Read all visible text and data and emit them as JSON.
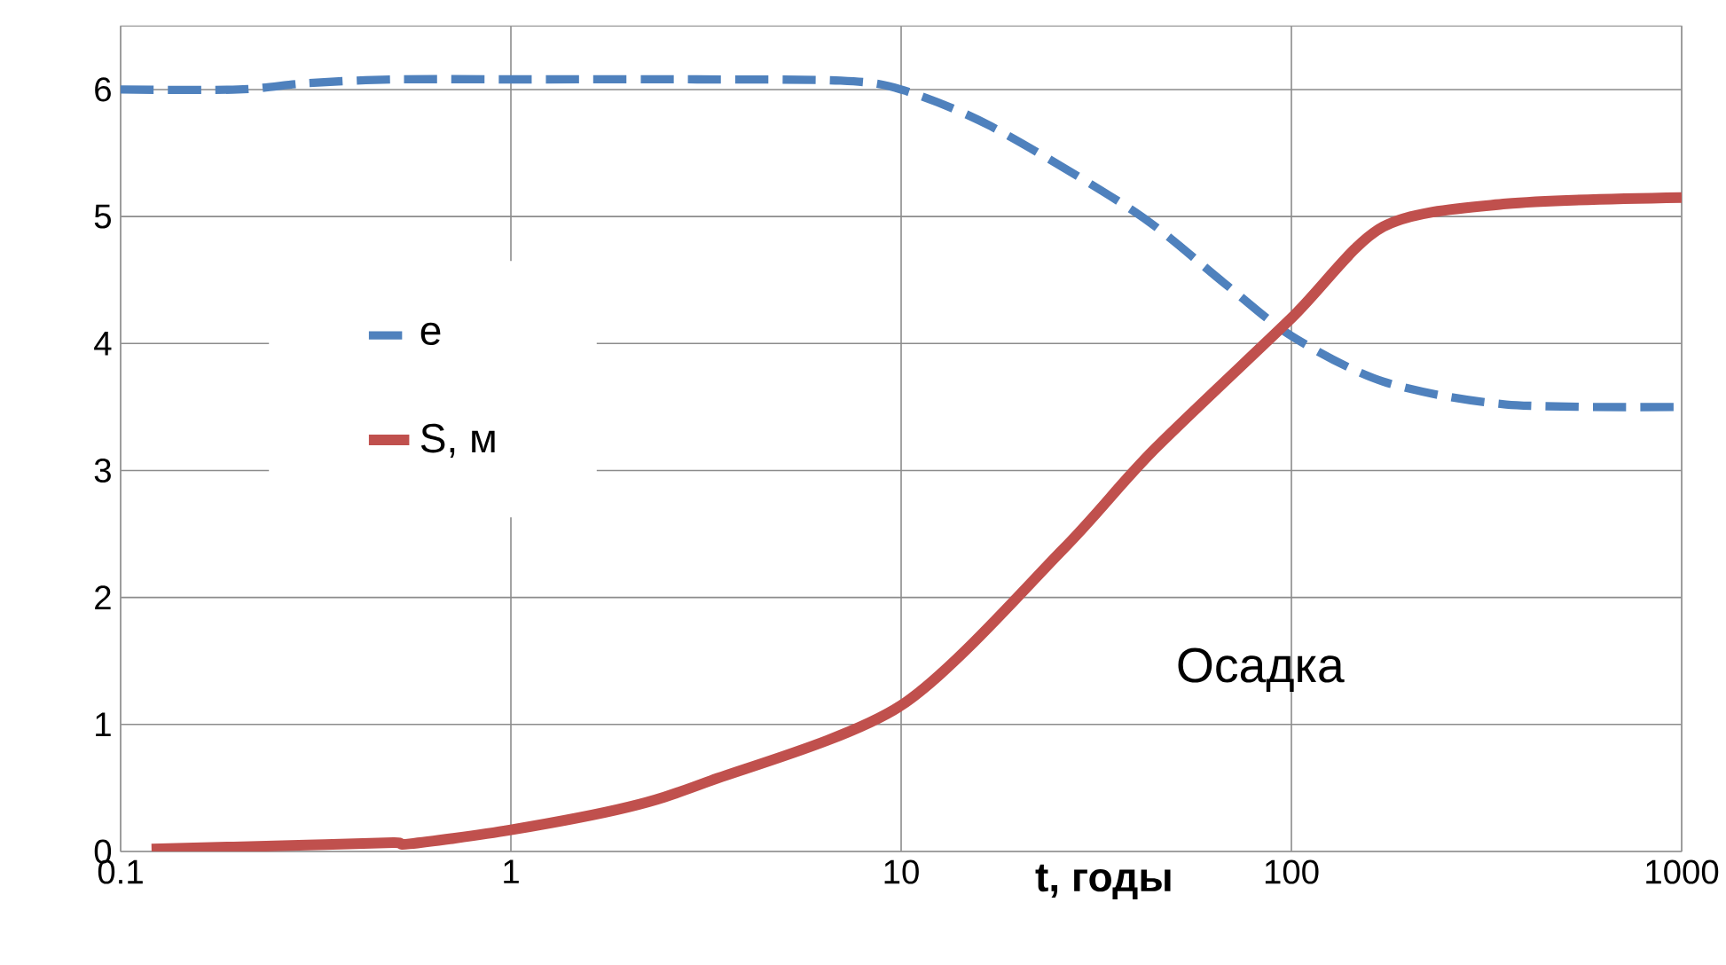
{
  "chart_data": {
    "type": "line",
    "xlabel": "t, годы",
    "log": "x",
    "grid": true,
    "legend": "left",
    "marker": "none",
    "xlim": [
      0.1,
      1000
    ],
    "xticks": [
      0.1,
      1,
      10,
      100,
      1000
    ],
    "ylim": [
      0,
      6.5
    ],
    "yticks": [
      0,
      1,
      2,
      3,
      4,
      5,
      6
    ],
    "annotations": [
      "Осадка"
    ],
    "series": [
      {
        "name": "e",
        "color": "#4f81bd",
        "line_style": "dashed",
        "x": [
          0.1,
          0.2,
          0.3,
          0.5,
          1,
          3,
          7,
          10,
          17,
          40,
          67,
          100,
          172,
          355,
          1000
        ],
        "values": [
          6.0,
          6.0,
          6.05,
          6.08,
          6.08,
          6.08,
          6.07,
          6.0,
          5.71,
          5.03,
          4.48,
          4.06,
          3.7,
          3.52,
          3.5
        ]
      },
      {
        "name": "S, м",
        "color": "#c0504d",
        "line_style": "solid",
        "x": [
          0.12,
          0.3,
          0.5,
          0.55,
          1,
          2,
          3.2,
          10,
          26,
          44,
          100,
          172,
          355,
          1000
        ],
        "values": [
          0.02,
          0.05,
          0.07,
          0.06,
          0.17,
          0.35,
          0.55,
          1.15,
          2.38,
          3.15,
          4.2,
          4.92,
          5.1,
          5.15
        ]
      }
    ]
  }
}
